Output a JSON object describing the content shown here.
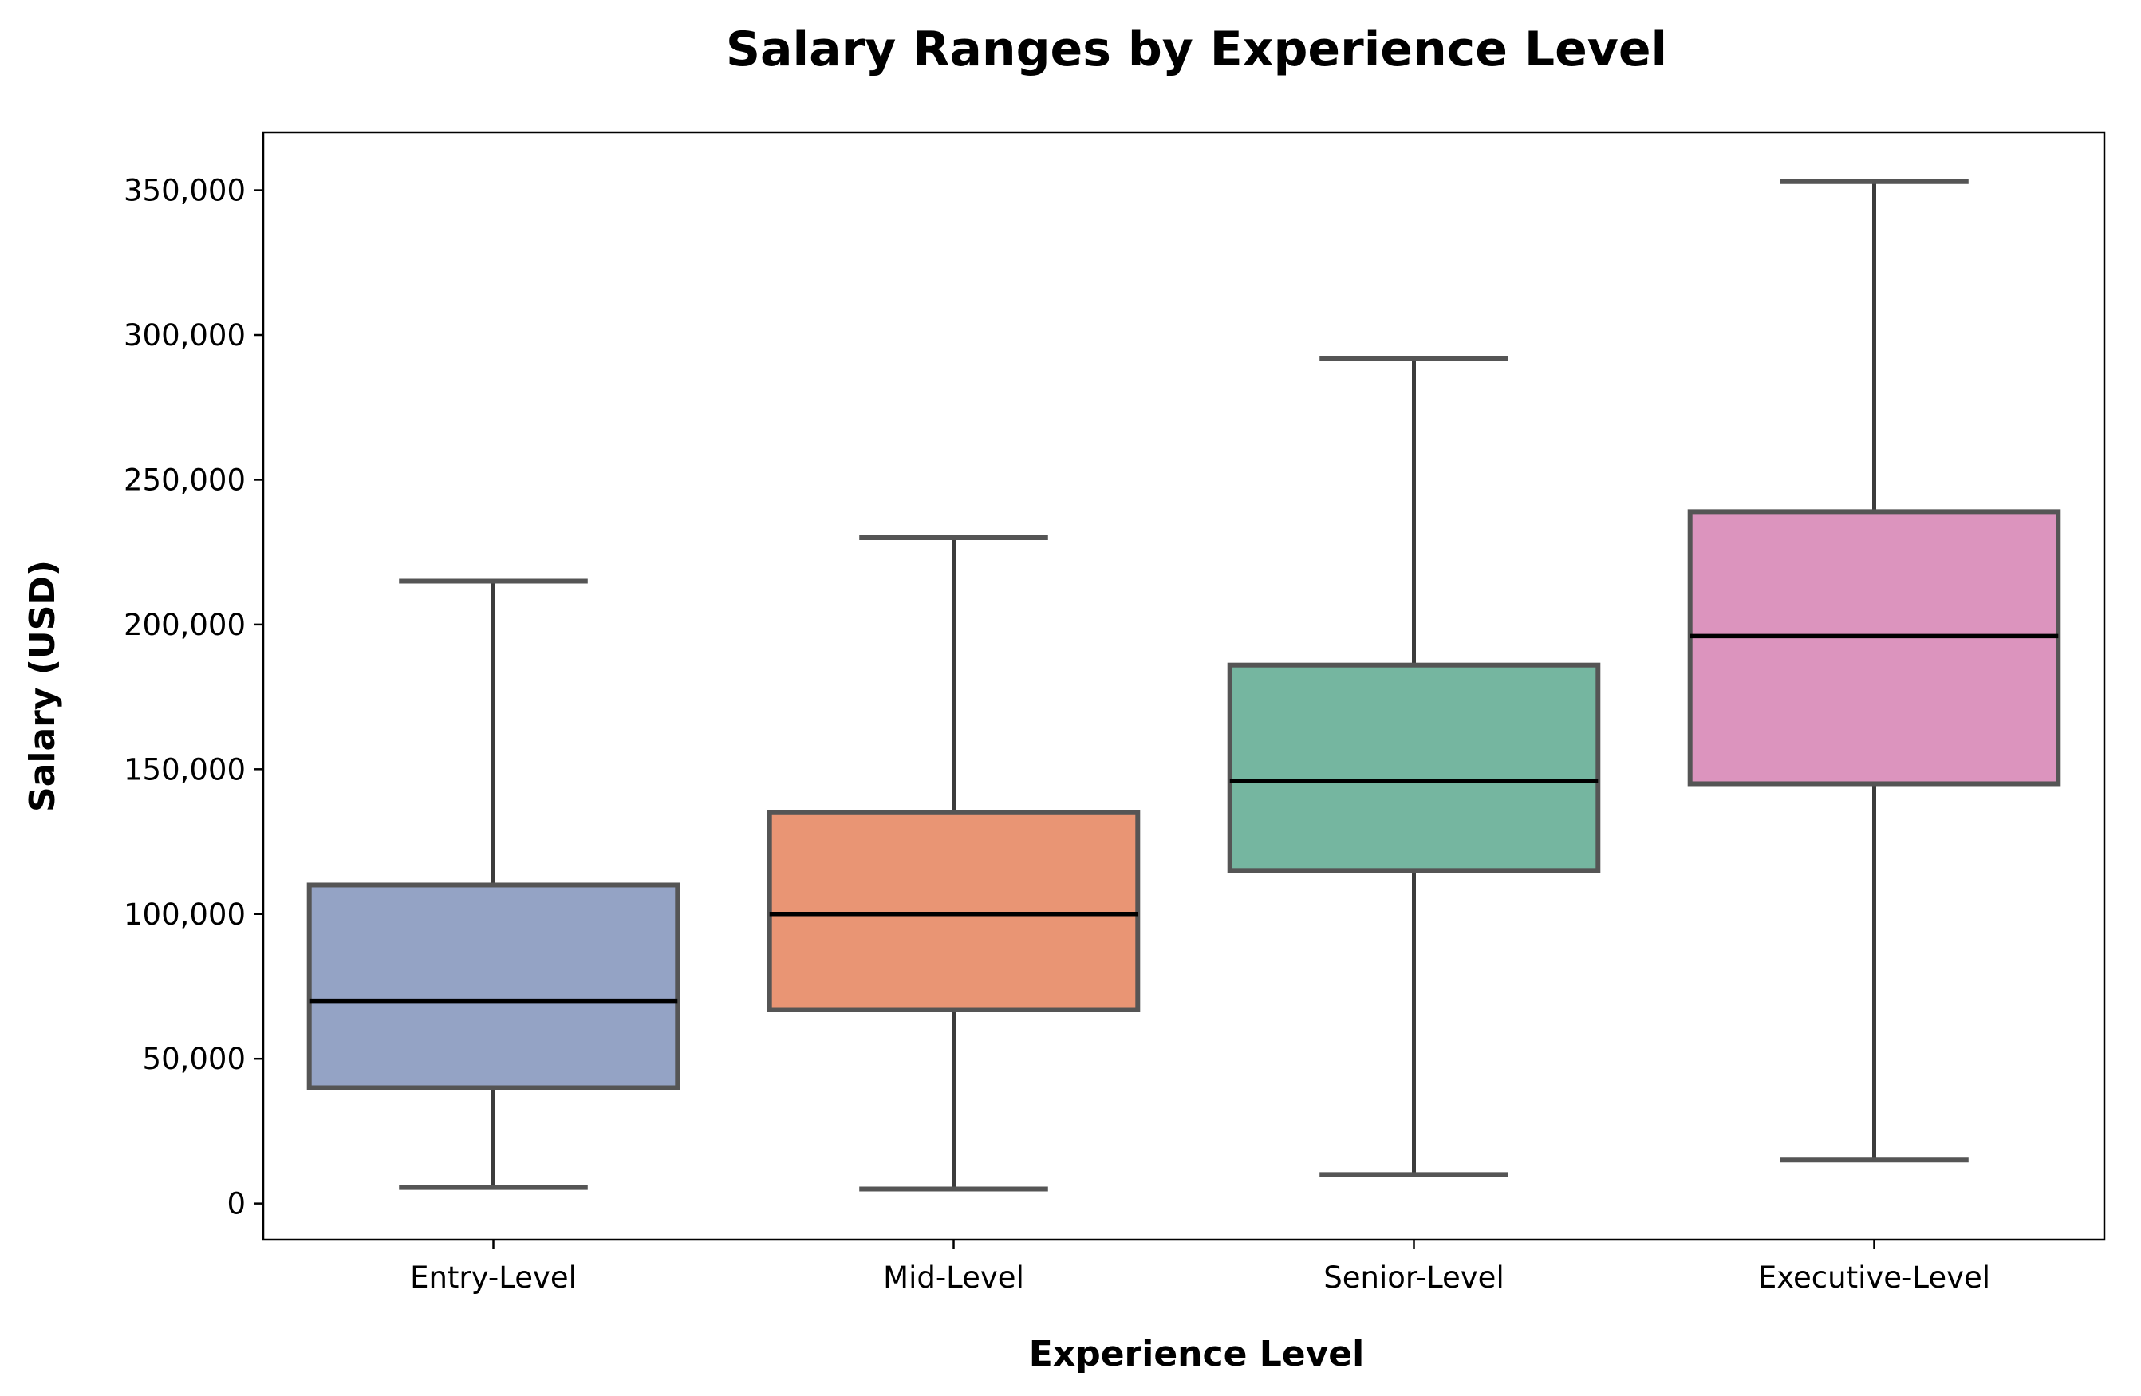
{
  "chart_data": {
    "type": "box",
    "title": "Salary Ranges by Experience Level",
    "xlabel": "Experience Level",
    "ylabel": "Salary (USD)",
    "ylim": [
      -12500,
      370000
    ],
    "yticks": [
      0,
      50000,
      100000,
      150000,
      200000,
      250000,
      300000,
      350000
    ],
    "ytick_labels": [
      "0",
      "50,000",
      "100,000",
      "150,000",
      "200,000",
      "250,000",
      "300,000",
      "350,000"
    ],
    "categories": [
      "Entry-Level",
      "Mid-Level",
      "Senior-Level",
      "Executive-Level"
    ],
    "boxes": [
      {
        "category": "Entry-Level",
        "whisker_low": 5500,
        "q1": 40000,
        "median": 70000,
        "q3": 110000,
        "whisker_high": 215000,
        "color": "#94a3c5"
      },
      {
        "category": "Mid-Level",
        "whisker_low": 5000,
        "q1": 67000,
        "median": 100000,
        "q3": 135000,
        "whisker_high": 230000,
        "color": "#e99574"
      },
      {
        "category": "Senior-Level",
        "whisker_low": 10000,
        "q1": 115000,
        "median": 146000,
        "q3": 186000,
        "whisker_high": 292000,
        "color": "#75b6a0"
      },
      {
        "category": "Executive-Level",
        "whisker_low": 15000,
        "q1": 145000,
        "median": 196000,
        "q3": 239000,
        "whisker_high": 353000,
        "color": "#dc94be"
      }
    ],
    "grid": false,
    "legend": "none"
  }
}
